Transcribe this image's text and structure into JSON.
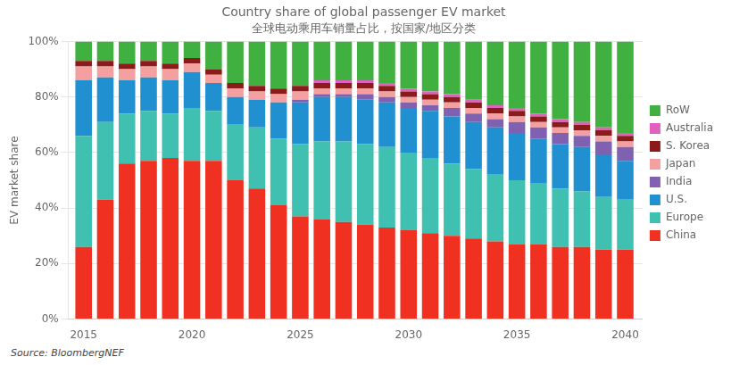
{
  "chart_data": {
    "type": "bar",
    "stacked": true,
    "title": "Country share of global passenger EV market",
    "subtitle": "全球电动乘用车销量占比，按国家/地区分类",
    "ylabel": "EV market share",
    "annotations": [
      "Source: BloombergNEF"
    ],
    "x": [
      2015,
      2016,
      2017,
      2018,
      2019,
      2020,
      2021,
      2022,
      2023,
      2024,
      2025,
      2026,
      2027,
      2028,
      2029,
      2030,
      2031,
      2032,
      2033,
      2034,
      2035,
      2036,
      2037,
      2038,
      2039,
      2040
    ],
    "series": [
      {
        "name": "China",
        "color": "#f03020",
        "values": [
          26,
          43,
          56,
          57,
          58,
          57,
          57,
          50,
          47,
          41,
          37,
          36,
          35,
          34,
          33,
          32,
          31,
          30,
          29,
          28,
          27,
          27,
          26,
          26,
          25,
          25
        ]
      },
      {
        "name": "Europe",
        "color": "#40c0b0",
        "values": [
          40,
          28,
          18,
          18,
          16,
          19,
          18,
          20,
          22,
          24,
          26,
          28,
          29,
          29,
          29,
          28,
          27,
          26,
          25,
          24,
          23,
          22,
          21,
          20,
          19,
          18
        ]
      },
      {
        "name": "U.S.",
        "color": "#2090d0",
        "values": [
          20,
          16,
          12,
          12,
          12,
          13,
          10,
          10,
          10,
          13,
          15,
          16,
          16,
          16,
          16,
          16,
          17,
          17,
          17,
          17,
          17,
          16,
          16,
          16,
          15,
          14
        ]
      },
      {
        "name": "India",
        "color": "#8060b0",
        "values": [
          0,
          0,
          0,
          0,
          0,
          0,
          0,
          0,
          0,
          0,
          1,
          1,
          1,
          2,
          2,
          2,
          2,
          3,
          3,
          3,
          4,
          4,
          4,
          4,
          5,
          5
        ]
      },
      {
        "name": "Japan",
        "color": "#f4a0a0",
        "values": [
          5,
          4,
          4,
          4,
          4,
          3,
          3,
          3,
          3,
          3,
          3,
          2,
          2,
          2,
          2,
          2,
          2,
          2,
          2,
          2,
          2,
          2,
          2,
          2,
          2,
          2
        ]
      },
      {
        "name": "S. Korea",
        "color": "#8b1a1a",
        "values": [
          2,
          2,
          2,
          2,
          2,
          2,
          2,
          2,
          2,
          2,
          2,
          2,
          2,
          2,
          2,
          2,
          2,
          2,
          2,
          2,
          2,
          2,
          2,
          2,
          2,
          2
        ]
      },
      {
        "name": "Australia",
        "color": "#e060c0",
        "values": [
          0,
          0,
          0,
          0,
          0,
          0,
          0,
          0,
          0,
          0,
          0,
          1,
          1,
          1,
          1,
          1,
          1,
          1,
          1,
          1,
          1,
          1,
          1,
          1,
          1,
          1
        ]
      },
      {
        "name": "RoW",
        "color": "#40b040",
        "values": [
          7,
          7,
          8,
          7,
          8,
          6,
          10,
          15,
          16,
          17,
          16,
          14,
          14,
          14,
          15,
          17,
          18,
          19,
          21,
          23,
          24,
          26,
          28,
          29,
          31,
          33
        ]
      }
    ],
    "xlim": [
      2014.3,
      2040.8
    ],
    "xticks": [
      2015,
      2020,
      2025,
      2030,
      2035,
      2040
    ],
    "ylim": [
      0,
      100
    ],
    "yticks": [
      {
        "value": 0,
        "label": "0%"
      },
      {
        "value": 20,
        "label": "20%"
      },
      {
        "value": 40,
        "label": "40%"
      },
      {
        "value": 60,
        "label": "60%"
      },
      {
        "value": 80,
        "label": "80%"
      },
      {
        "value": 100,
        "label": "100%"
      }
    ],
    "grid": "y",
    "legend": "right"
  }
}
